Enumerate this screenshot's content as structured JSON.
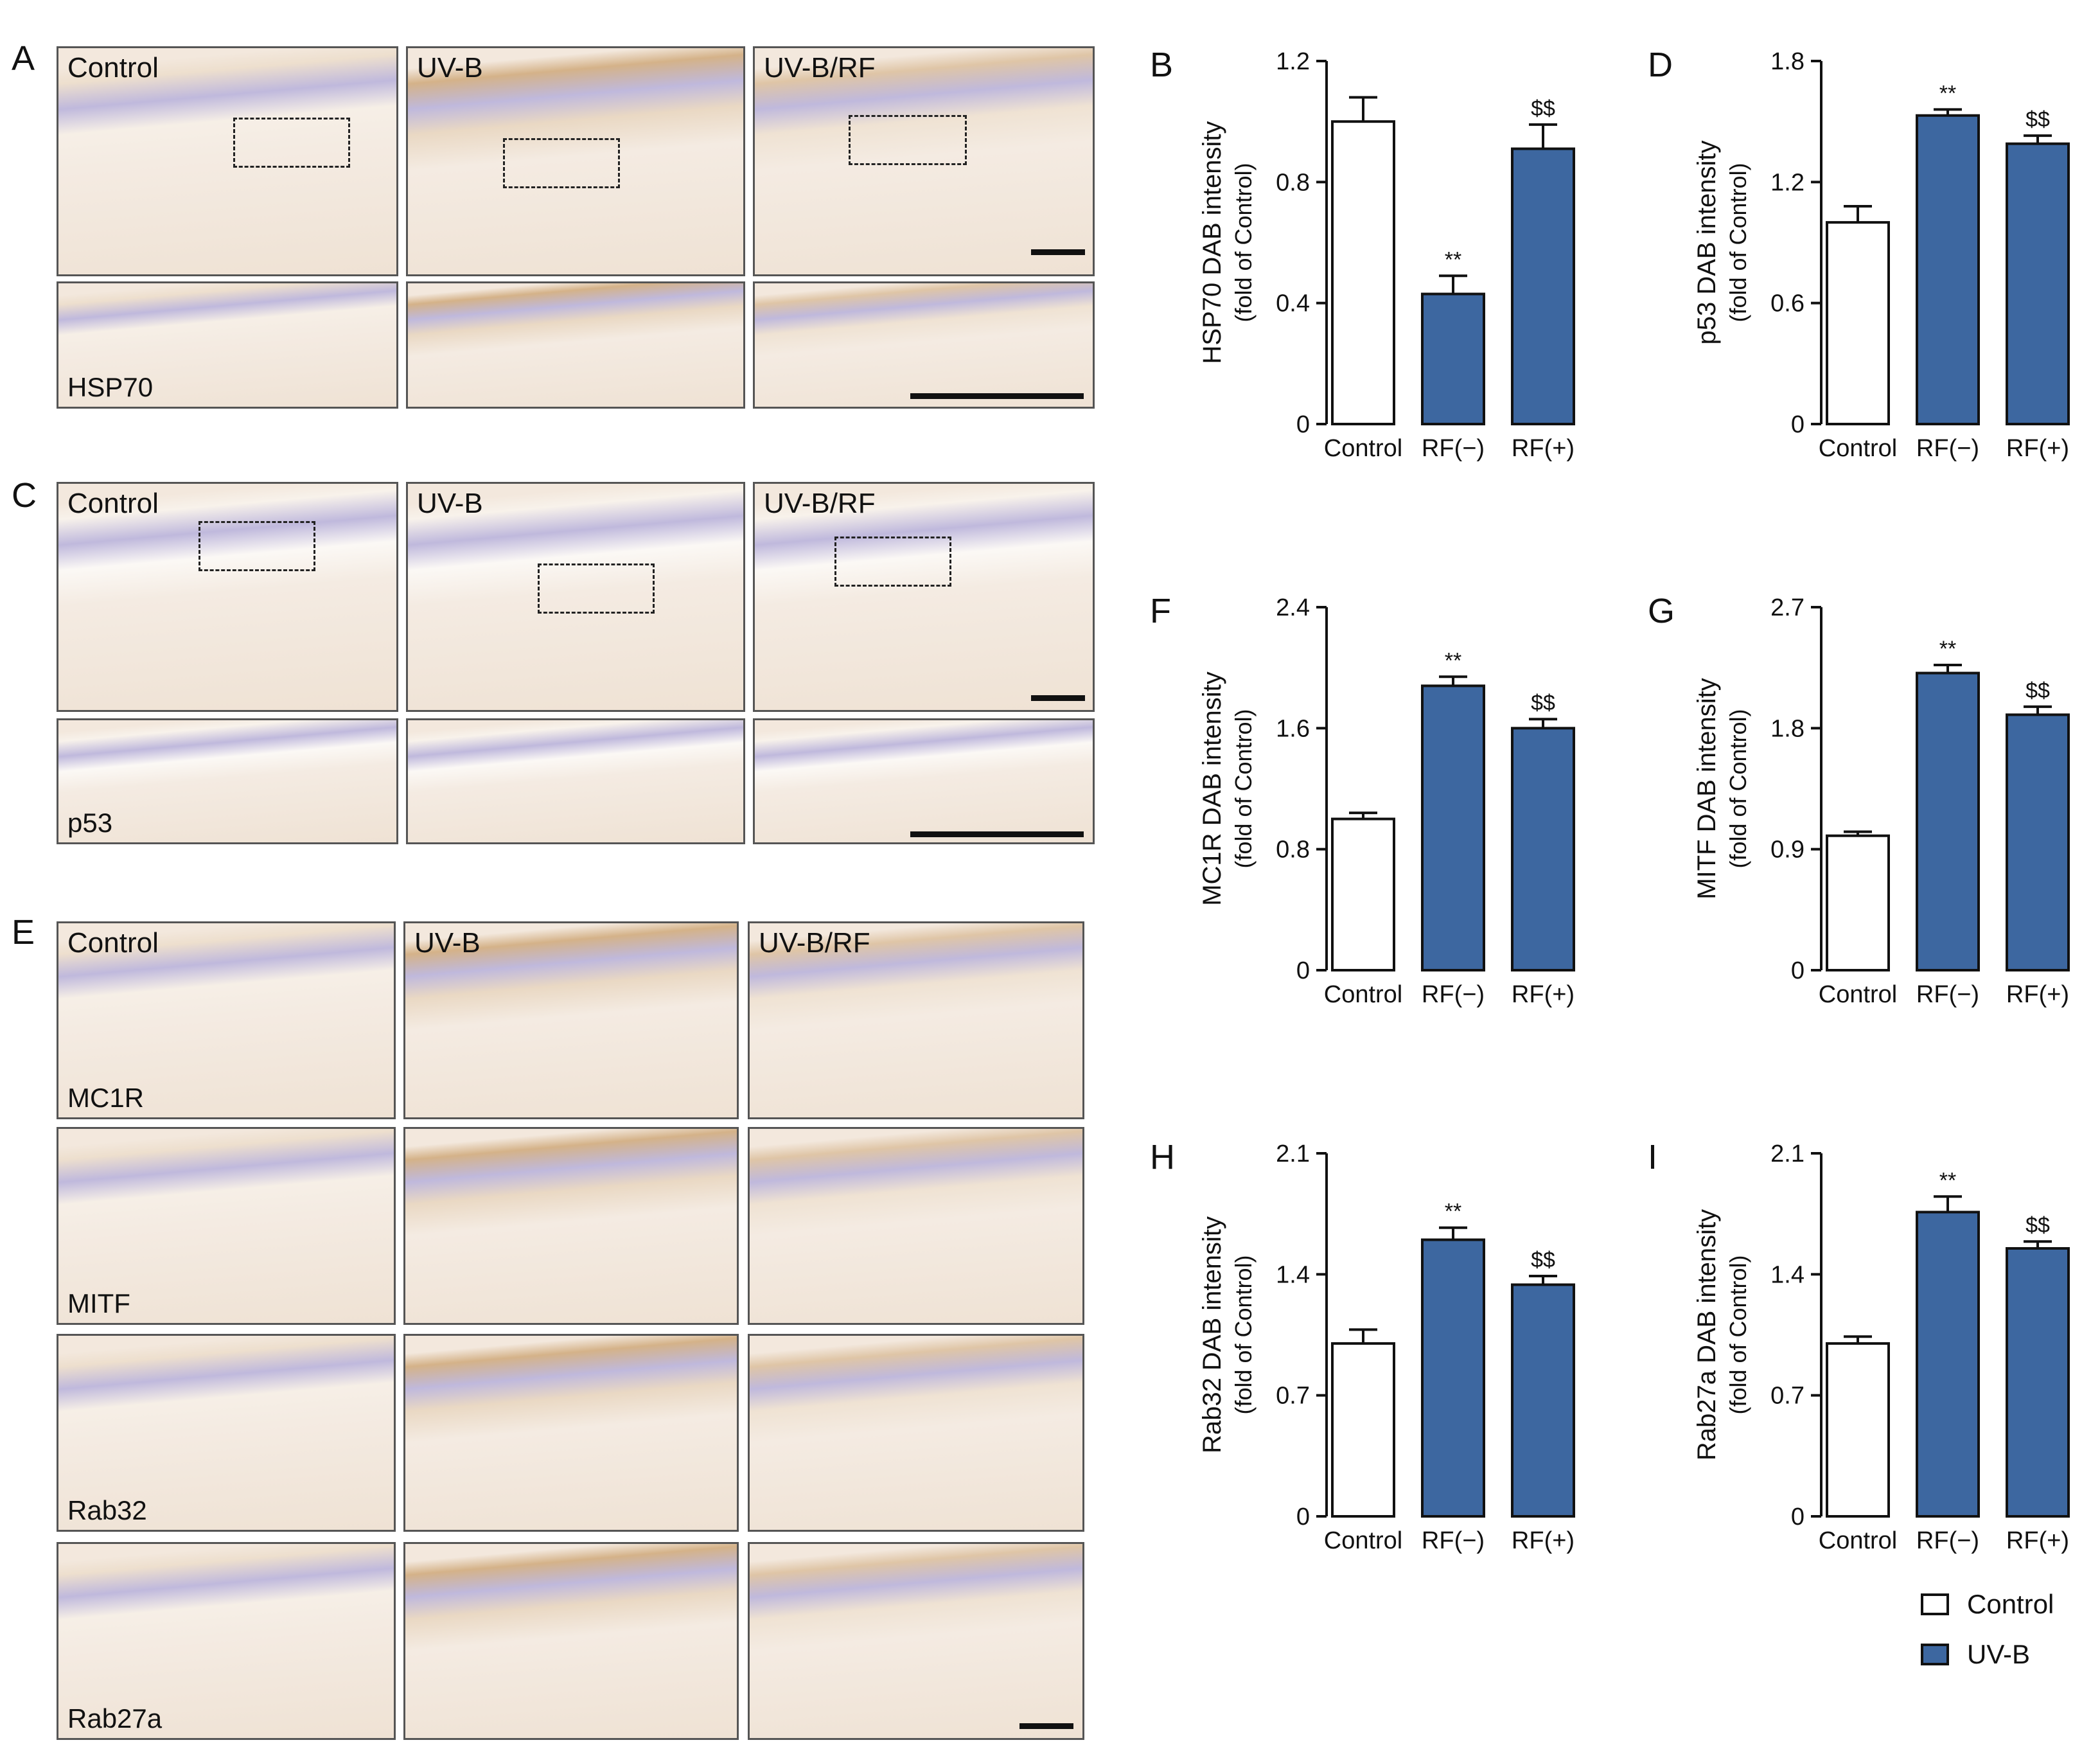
{
  "panel_letters": {
    "A": "A",
    "B": "B",
    "C": "C",
    "D": "D",
    "E": "E",
    "F": "F",
    "G": "G",
    "H": "H",
    "I": "I"
  },
  "micrographs": {
    "conditions": [
      "Control",
      "UV-B",
      "UV-B/RF"
    ],
    "markers": {
      "hsp70": "HSP70",
      "p53": "p53",
      "mc1r": "MC1R",
      "mitf": "MITF",
      "rab32": "Rab32",
      "rab27a": "Rab27a"
    }
  },
  "colors": {
    "control_fill": "#ffffff",
    "uvb_fill": "#3d67a0",
    "bar_stroke": "#111111",
    "tissue_background": "#f3e8dd",
    "tissue_hematoxylin": "#8b7fc0",
    "tissue_dab": "#b87f3a"
  },
  "legend": {
    "control": "Control",
    "uvb": "UV-B"
  },
  "chart_data": [
    {
      "id": "B",
      "type": "bar",
      "ylabel_line1": "HSP70 DAB intensity",
      "ylabel_line2": "(fold of Control)",
      "categories": [
        "Control",
        "RF(−)",
        "RF(+)"
      ],
      "values": [
        1.0,
        0.43,
        0.91
      ],
      "errors": [
        0.08,
        0.06,
        0.08
      ],
      "annotations": [
        "",
        "**",
        "$$"
      ],
      "ylim": [
        0,
        1.2
      ],
      "yticks": [
        "0",
        "0.4",
        "0.8",
        "1.2"
      ],
      "series_colors": [
        "control",
        "uvb",
        "uvb"
      ]
    },
    {
      "id": "D",
      "type": "bar",
      "ylabel_line1": "p53 DAB intensity",
      "ylabel_line2": "(fold of Control)",
      "categories": [
        "Control",
        "RF(−)",
        "RF(+)"
      ],
      "values": [
        1.0,
        1.53,
        1.39
      ],
      "errors": [
        0.08,
        0.03,
        0.04
      ],
      "annotations": [
        "",
        "**",
        "$$"
      ],
      "ylim": [
        0,
        1.8
      ],
      "yticks": [
        "0",
        "0.6",
        "1.2",
        "1.8"
      ],
      "series_colors": [
        "control",
        "uvb",
        "uvb"
      ]
    },
    {
      "id": "F",
      "type": "bar",
      "ylabel_line1": "MC1R DAB intensity",
      "ylabel_line2": "(fold of Control)",
      "categories": [
        "Control",
        "RF(−)",
        "RF(+)"
      ],
      "values": [
        1.0,
        1.88,
        1.6
      ],
      "errors": [
        0.04,
        0.06,
        0.06
      ],
      "annotations": [
        "",
        "**",
        "$$"
      ],
      "ylim": [
        0,
        2.4
      ],
      "yticks": [
        "0",
        "0.8",
        "1.6",
        "2.4"
      ],
      "series_colors": [
        "control",
        "uvb",
        "uvb"
      ]
    },
    {
      "id": "G",
      "type": "bar",
      "ylabel_line1": "MITF DAB intensity",
      "ylabel_line2": "(fold of Control)",
      "categories": [
        "Control",
        "RF(−)",
        "RF(+)"
      ],
      "values": [
        1.0,
        2.21,
        1.9
      ],
      "errors": [
        0.03,
        0.06,
        0.06
      ],
      "annotations": [
        "",
        "**",
        "$$"
      ],
      "ylim": [
        0,
        2.7
      ],
      "yticks": [
        "0",
        "0.9",
        "1.8",
        "2.7"
      ],
      "series_colors": [
        "control",
        "uvb",
        "uvb"
      ]
    },
    {
      "id": "H",
      "type": "bar",
      "ylabel_line1": "Rab32 DAB intensity",
      "ylabel_line2": "(fold of Control)",
      "categories": [
        "Control",
        "RF(−)",
        "RF(+)"
      ],
      "values": [
        1.0,
        1.6,
        1.34
      ],
      "errors": [
        0.08,
        0.07,
        0.05
      ],
      "annotations": [
        "",
        "**",
        "$$"
      ],
      "ylim": [
        0,
        2.1
      ],
      "yticks": [
        "0",
        "0.7",
        "1.4",
        "2.1"
      ],
      "series_colors": [
        "control",
        "uvb",
        "uvb"
      ]
    },
    {
      "id": "I",
      "type": "bar",
      "ylabel_line1": "Rab27a DAB intensity",
      "ylabel_line2": "(fold of Control)",
      "categories": [
        "Control",
        "RF(−)",
        "RF(+)"
      ],
      "values": [
        1.0,
        1.76,
        1.55
      ],
      "errors": [
        0.04,
        0.09,
        0.04
      ],
      "annotations": [
        "",
        "**",
        "$$"
      ],
      "ylim": [
        0,
        2.1
      ],
      "yticks": [
        "0",
        "0.7",
        "1.4",
        "2.1"
      ],
      "series_colors": [
        "control",
        "uvb",
        "uvb"
      ]
    }
  ]
}
